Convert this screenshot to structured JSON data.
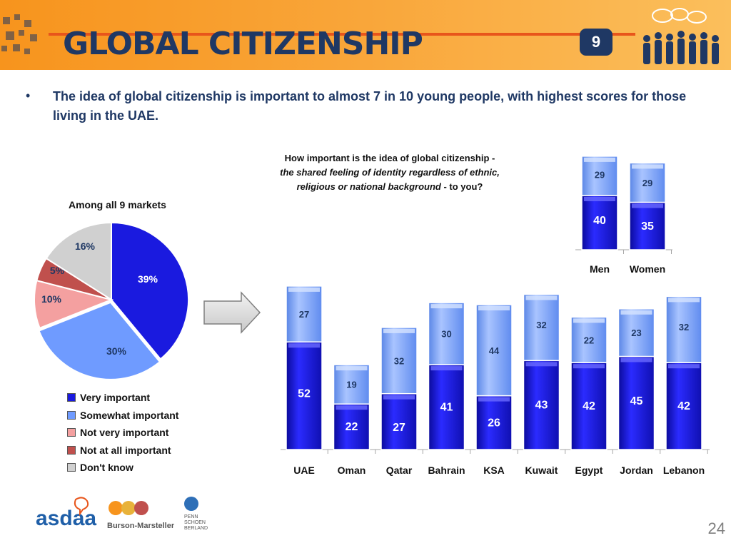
{
  "header": {
    "title": "GLOBAL CITIZENSHIP",
    "badge": "9",
    "accent": "#f7941d",
    "title_color": "#1f3864"
  },
  "bullet": {
    "symbol": "•",
    "text": "The idea of global citizenship is important to almost 7 in 10 young people, with highest scores for those living in the UAE."
  },
  "question": {
    "line1": "How important is the idea of global citizenship -",
    "line2_italic": "the shared feeling of identity regardless of ethnic,",
    "line3_italic": "religious or national background",
    "line3_rest": " - to you?"
  },
  "pie_caption": "Among all 9 markets",
  "logos": {
    "asdaa": "asdaa",
    "burson": "Burson-Marsteller",
    "psb": [
      "PENN",
      "SCHOEN",
      "BERLAND"
    ]
  },
  "page_number": "24",
  "colors": {
    "very": "#1a1adf",
    "somewhat": "#6f9bff",
    "notvery": "#f4a0a0",
    "notatall": "#c0504d",
    "dontknow": "#d0d0d0"
  },
  "chart_data": [
    {
      "type": "pie",
      "title": "Among all 9 markets",
      "slices": [
        {
          "label": "Very important",
          "value": 39,
          "text": "39%",
          "color": "#1a1adf"
        },
        {
          "label": "Somewhat important",
          "value": 30,
          "text": "30%",
          "color": "#6f9bff"
        },
        {
          "label": "Not very important",
          "value": 10,
          "text": "10%",
          "color": "#f4a0a0"
        },
        {
          "label": "Not at all important",
          "value": 5,
          "text": "5%",
          "color": "#c0504d"
        },
        {
          "label": "Don't know",
          "value": 16,
          "text": "16%",
          "color": "#d0d0d0"
        }
      ],
      "legend": [
        "Very important",
        "Somewhat important",
        "Not very important",
        "Not at all important",
        "Don't know"
      ],
      "legend_position": "bottom"
    },
    {
      "type": "bar",
      "stacked": true,
      "categories": [
        "UAE",
        "Oman",
        "Qatar",
        "Bahrain",
        "KSA",
        "Kuwait",
        "Egypt",
        "Jordan",
        "Lebanon"
      ],
      "series": [
        {
          "name": "Very important",
          "values": [
            52,
            22,
            27,
            41,
            26,
            43,
            42,
            45,
            42
          ]
        },
        {
          "name": "Somewhat important",
          "values": [
            27,
            19,
            32,
            30,
            44,
            32,
            22,
            23,
            32
          ]
        }
      ]
    },
    {
      "type": "bar",
      "stacked": true,
      "categories": [
        "Men",
        "Women"
      ],
      "series": [
        {
          "name": "Very important",
          "values": [
            40,
            35
          ]
        },
        {
          "name": "Somewhat important",
          "values": [
            29,
            29
          ]
        }
      ]
    }
  ]
}
